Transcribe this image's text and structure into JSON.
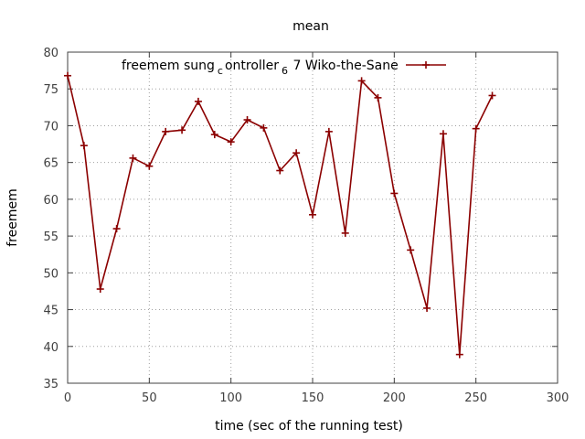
{
  "chart_data": {
    "type": "line",
    "title": "mean",
    "xlabel": "time (sec of the running test)",
    "ylabel": "freemem",
    "xlim": [
      0,
      300
    ],
    "ylim": [
      35,
      80
    ],
    "xticks": [
      "0",
      "50",
      "100",
      "150",
      "200",
      "250",
      "300"
    ],
    "yticks": [
      "35",
      "40",
      "45",
      "50",
      "55",
      "60",
      "65",
      "70",
      "75",
      "80"
    ],
    "grid": true,
    "legend_position": "top",
    "series": [
      {
        "name": "freemem sung_controller_6 7 Wiko-the-Sane",
        "legend_parts": {
          "a": "freemem sung",
          "sub1": "c",
          "b": "ontroller",
          "sub2": "6",
          "c": " 7 Wiko-the-Sane"
        },
        "color": "#8b0000",
        "x": [
          0,
          10,
          20,
          30,
          40,
          50,
          60,
          70,
          80,
          90,
          100,
          110,
          120,
          130,
          140,
          150,
          160,
          170,
          180,
          190,
          200,
          210,
          220,
          230,
          240,
          250,
          260
        ],
        "y": [
          76.8,
          67.3,
          47.8,
          56.0,
          65.6,
          64.5,
          69.2,
          69.4,
          73.3,
          68.8,
          67.8,
          70.8,
          69.7,
          63.9,
          66.3,
          57.9,
          69.2,
          55.4,
          76.1,
          73.8,
          60.8,
          53.1,
          45.2,
          68.9,
          38.9,
          69.6,
          74.1
        ]
      }
    ]
  }
}
